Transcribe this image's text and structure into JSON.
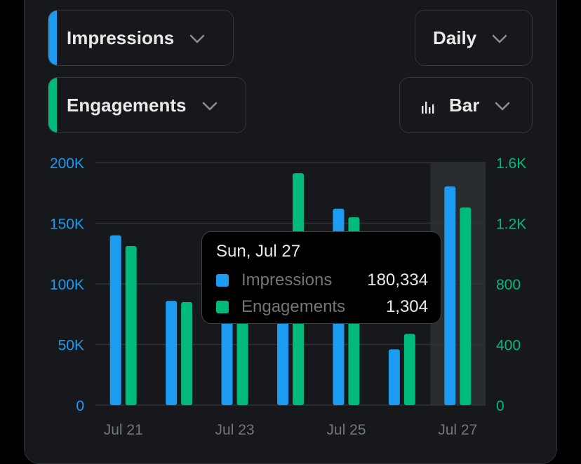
{
  "controls": {
    "metric1": {
      "label": "Impressions",
      "color": "#1d9bf0"
    },
    "metric2": {
      "label": "Engagements",
      "color": "#00ba7c"
    },
    "interval": {
      "label": "Daily"
    },
    "chart_type": {
      "label": "Bar",
      "icon": "bar-chart-icon"
    },
    "chevron_icon": "chevron-down-icon"
  },
  "tooltip": {
    "title": "Sun, Jul 27",
    "rows": [
      {
        "name": "Impressions",
        "value": "180,334",
        "color": "#1d9bf0"
      },
      {
        "name": "Engagements",
        "value": "1,304",
        "color": "#00ba7c"
      }
    ]
  },
  "chart_data": {
    "type": "bar",
    "categories": [
      "Jul 21",
      "Jul 22",
      "Jul 23",
      "Jul 24",
      "Jul 25",
      "Jul 26",
      "Jul 27"
    ],
    "x_tick_labels": [
      "Jul 21",
      "Jul 23",
      "Jul 25",
      "Jul 27"
    ],
    "series": [
      {
        "name": "Impressions",
        "axis": "left",
        "color": "#1d9bf0",
        "values": [
          140000,
          86000,
          90000,
          100000,
          162000,
          46000,
          180334
        ]
      },
      {
        "name": "Engagements",
        "axis": "right",
        "color": "#00ba7c",
        "values": [
          1050,
          680,
          700,
          1530,
          1240,
          470,
          1304
        ]
      }
    ],
    "y_left": {
      "ylim": [
        0,
        200000
      ],
      "ticks": [
        "0",
        "50K",
        "100K",
        "150K",
        "200K"
      ],
      "color": "#1d9bf0"
    },
    "y_right": {
      "ylim": [
        0,
        1600
      ],
      "ticks": [
        "0",
        "400",
        "800",
        "1.2K",
        "1.6K"
      ],
      "color": "#00ba7c"
    },
    "highlighted_category": "Jul 27",
    "grid": true
  }
}
